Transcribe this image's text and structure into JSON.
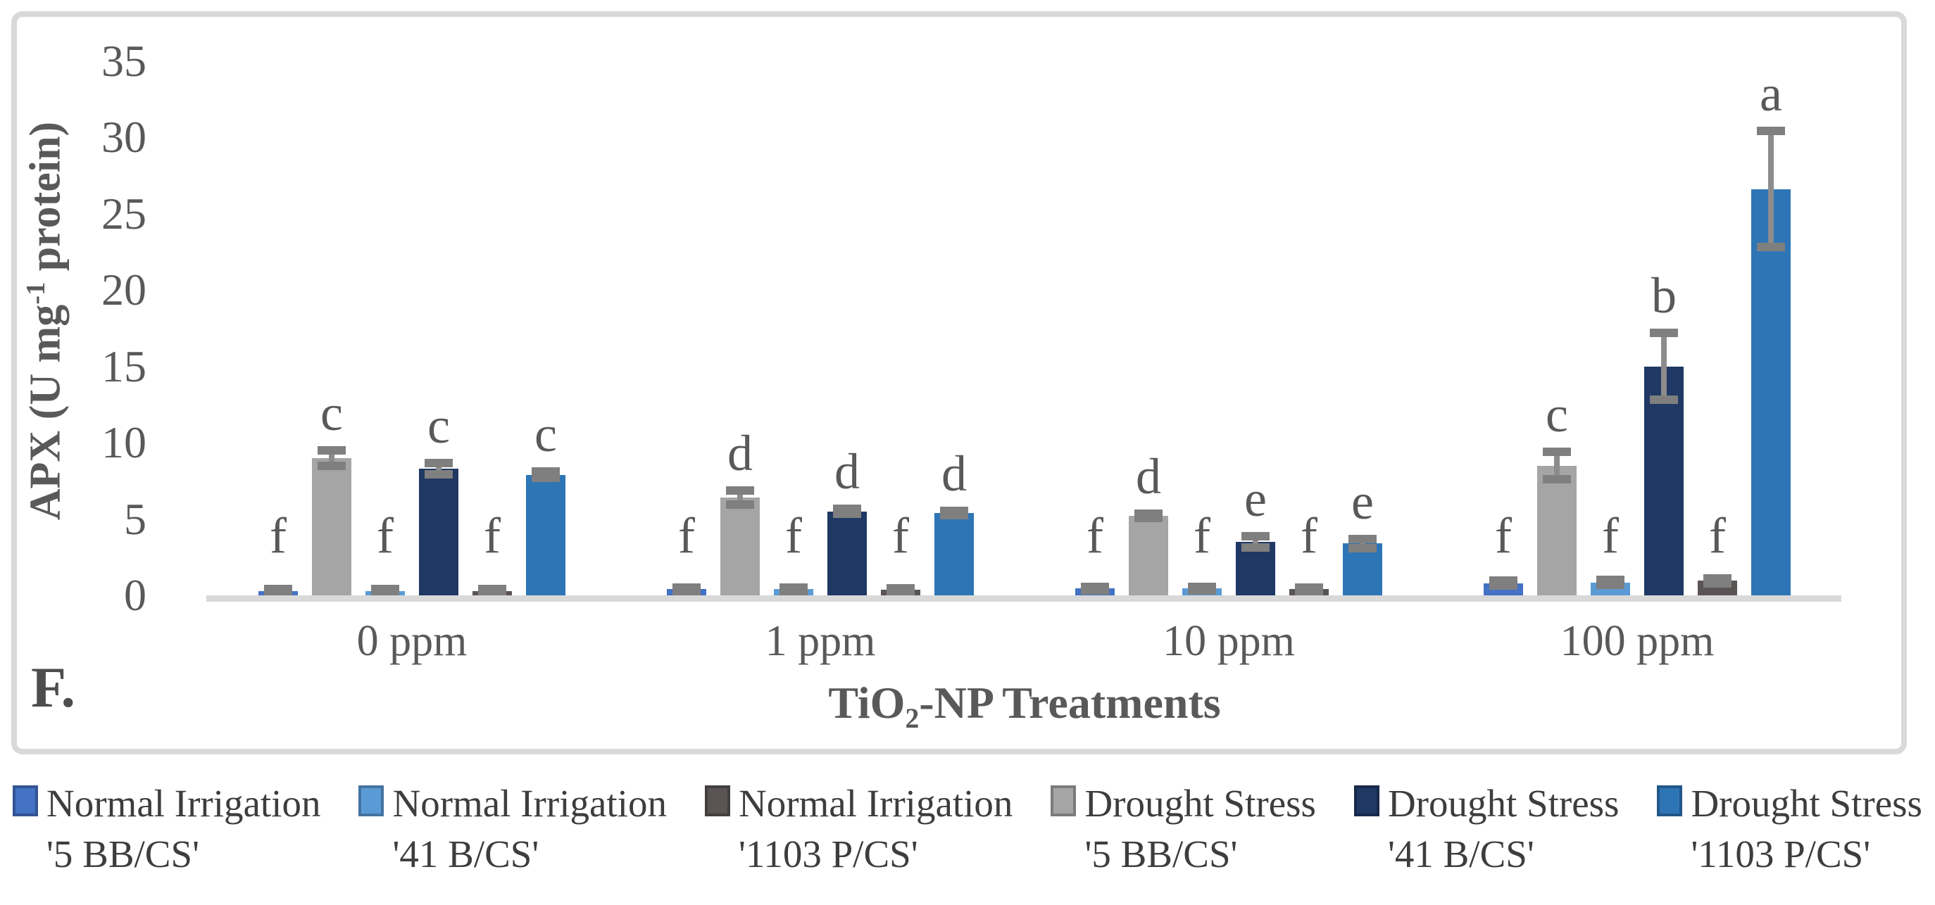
{
  "chart_data": {
    "type": "bar",
    "panel_label": "F.",
    "ylabel": {
      "prefix": "APX (U mg",
      "superscript": "-1",
      "suffix": " protein)"
    },
    "xlabel": {
      "prefix": "TiO",
      "subscript": "2",
      "suffix": "-NP Treatments"
    },
    "categories": [
      "0 ppm",
      "1 ppm",
      "10 ppm",
      "100 ppm"
    ],
    "ylim": [
      0,
      35
    ],
    "yticks": [
      0,
      5,
      10,
      15,
      20,
      25,
      30,
      35
    ],
    "grid": false,
    "legend_position": "bottom",
    "bar_plot_order": [
      0,
      3,
      1,
      4,
      2,
      5
    ],
    "axis_color": "#D9D9D9",
    "error_bar_color": "#7F7F7F",
    "text_color": "#595959",
    "legend_text_color": "#3D3D3D",
    "series": [
      {
        "name": "Normal Irrigation",
        "cultivar": "'5 BB/CS'",
        "color": "#4472C4",
        "values": [
          0.3,
          0.4,
          0.45,
          0.8
        ],
        "errors": [
          0.12,
          0.12,
          0.12,
          0.15
        ],
        "letters": [
          "f",
          "f",
          "f",
          "f"
        ]
      },
      {
        "name": "Normal Irrigation",
        "cultivar": "'41 B/CS'",
        "color": "#5B9BD5",
        "values": [
          0.3,
          0.4,
          0.45,
          0.85
        ],
        "errors": [
          0.12,
          0.12,
          0.12,
          0.15
        ],
        "letters": [
          "f",
          "f",
          "f",
          "f"
        ]
      },
      {
        "name": "Normal Irrigation",
        "cultivar": "'1103 P/CS'",
        "color": "#5A5454",
        "values": [
          0.3,
          0.35,
          0.4,
          0.95
        ],
        "errors": [
          0.12,
          0.12,
          0.12,
          0.15
        ],
        "letters": [
          "f",
          "f",
          "f",
          "f"
        ]
      },
      {
        "name": "Drought Stress",
        "cultivar": "'5 BB/CS'",
        "color": "#A5A5A5",
        "values": [
          9.0,
          6.4,
          5.2,
          8.5
        ],
        "errors": [
          0.5,
          0.45,
          0.15,
          0.9
        ],
        "letters": [
          "c",
          "d",
          "d",
          "c"
        ]
      },
      {
        "name": "Drought Stress",
        "cultivar": "'41 B/CS'",
        "color": "#1F3864",
        "values": [
          8.3,
          5.5,
          3.5,
          15.0
        ],
        "errors": [
          0.35,
          0.15,
          0.35,
          2.2
        ],
        "letters": [
          "c",
          "d",
          "e",
          "b"
        ]
      },
      {
        "name": "Drought Stress",
        "cultivar": "'1103 P/CS'",
        "color": "#2E75B6",
        "values": [
          7.9,
          5.4,
          3.4,
          26.6
        ],
        "errors": [
          0.2,
          0.15,
          0.3,
          3.8
        ],
        "letters": [
          "c",
          "d",
          "e",
          "a"
        ]
      }
    ]
  }
}
